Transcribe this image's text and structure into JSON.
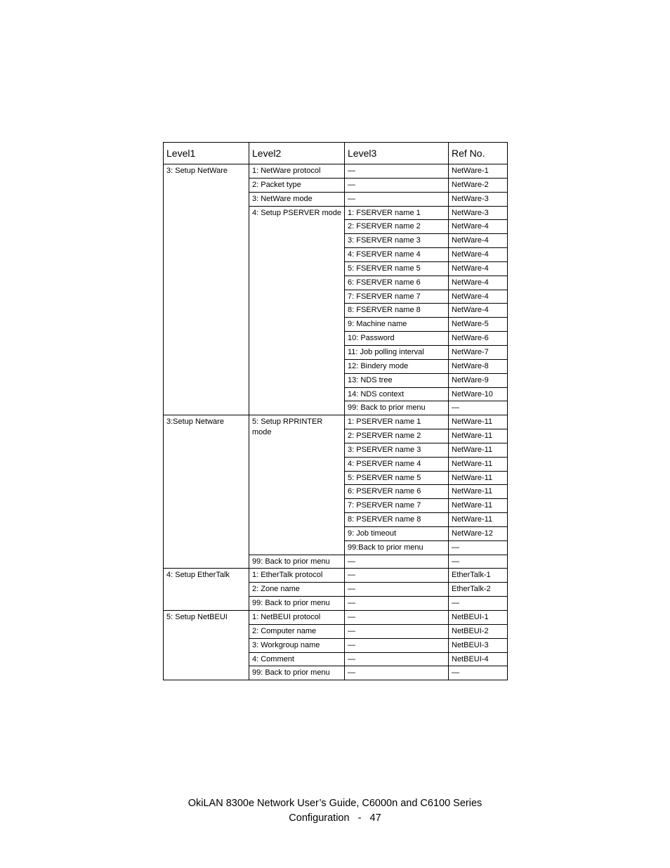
{
  "columns": [
    "Level1",
    "Level2",
    "Level3",
    "Ref No."
  ],
  "footer_line1": "OkiLAN 8300e Network User’s Guide, C6000n and C6100 Series",
  "footer_line2": "Configuration   -   47",
  "groups": [
    {
      "level1": "3: Setup NetWare",
      "subgroups": [
        {
          "level2": "1:  NetWare protocol",
          "items": [
            {
              "level3": "—",
              "ref": "NetWare-1"
            }
          ]
        },
        {
          "level2": "2:  Packet type",
          "items": [
            {
              "level3": "—",
              "ref": "NetWare-2"
            }
          ]
        },
        {
          "level2": "3:  NetWare mode",
          "items": [
            {
              "level3": "—",
              "ref": "NetWare-3"
            }
          ]
        },
        {
          "level2": "4:  Setup PSERVER mode",
          "items": [
            {
              "level3": "1:  FSERVER name 1",
              "ref": "NetWare-3"
            },
            {
              "level3": "2:  FSERVER name 2",
              "ref": "NetWare-4"
            },
            {
              "level3": "3:  FSERVER name 3",
              "ref": "NetWare-4"
            },
            {
              "level3": "4:  FSERVER name 4",
              "ref": "NetWare-4"
            },
            {
              "level3": "5:  FSERVER name 5",
              "ref": "NetWare-4"
            },
            {
              "level3": "6:  FSERVER name 6",
              "ref": "NetWare-4"
            },
            {
              "level3": "7:  FSERVER name 7",
              "ref": "NetWare-4"
            },
            {
              "level3": "8:  FSERVER name 8",
              "ref": "NetWare-4"
            },
            {
              "level3": "9:  Machine name",
              "ref": "NetWare-5"
            },
            {
              "level3": "10: Password",
              "ref": "NetWare-6"
            },
            {
              "level3": "11: Job polling interval",
              "ref": "NetWare-7"
            },
            {
              "level3": "12: Bindery mode",
              "ref": "NetWare-8"
            },
            {
              "level3": "13: NDS tree",
              "ref": "NetWare-9"
            },
            {
              "level3": "14: NDS context",
              "ref": "NetWare-10"
            },
            {
              "level3": "99:  Back to prior menu",
              "ref": "—"
            }
          ]
        }
      ]
    },
    {
      "level1": "3:Setup Netware",
      "subgroups": [
        {
          "level2": "5: Setup RPRINTER mode",
          "items": [
            {
              "level3": "1:  PSERVER name 1",
              "ref": "NetWare-11"
            },
            {
              "level3": "2:  PSERVER name 2",
              "ref": "NetWare-11"
            },
            {
              "level3": "3:  PSERVER name 3",
              "ref": "NetWare-11"
            },
            {
              "level3": "4:  PSERVER name 4",
              "ref": "NetWare-11"
            },
            {
              "level3": "5:  PSERVER name 5",
              "ref": "NetWare-11"
            },
            {
              "level3": "6:  PSERVER name 6",
              "ref": "NetWare-11"
            },
            {
              "level3": "7:  PSERVER name 7",
              "ref": "NetWare-11"
            },
            {
              "level3": "8:  PSERVER name 8",
              "ref": "NetWare-11"
            },
            {
              "level3": "9: Job timeout",
              "ref": "NetWare-12"
            },
            {
              "level3": "99:Back to prior menu",
              "ref": "—"
            }
          ]
        },
        {
          "level2": "99: Back to prior menu",
          "items": [
            {
              "level3": "—",
              "ref": "—"
            }
          ]
        }
      ]
    },
    {
      "level1": "4: Setup EtherTalk",
      "subgroups": [
        {
          "level2": "1:  EtherTalk protocol",
          "items": [
            {
              "level3": "—",
              "ref": "EtherTalk-1"
            }
          ]
        },
        {
          "level2": "2:  Zone name",
          "items": [
            {
              "level3": "—",
              "ref": "EtherTalk-2"
            }
          ]
        },
        {
          "level2": "99: Back to prior menu",
          "items": [
            {
              "level3": "—",
              "ref": "—"
            }
          ]
        }
      ]
    },
    {
      "level1": "5: Setup NetBEUI",
      "subgroups": [
        {
          "level2": "1:  NetBEUI protocol",
          "items": [
            {
              "level3": "—",
              "ref": "NetBEUI-1"
            }
          ]
        },
        {
          "level2": "2:  Computer name",
          "items": [
            {
              "level3": "—",
              "ref": "NetBEUI-2"
            }
          ]
        },
        {
          "level2": "3:  Workgroup name",
          "items": [
            {
              "level3": "—",
              "ref": "NetBEUI-3"
            }
          ]
        },
        {
          "level2": "4:  Comment",
          "items": [
            {
              "level3": "—",
              "ref": "NetBEUI-4"
            }
          ]
        },
        {
          "level2": "99: Back to prior menu",
          "items": [
            {
              "level3": "—",
              "ref": "—"
            }
          ]
        }
      ]
    }
  ]
}
